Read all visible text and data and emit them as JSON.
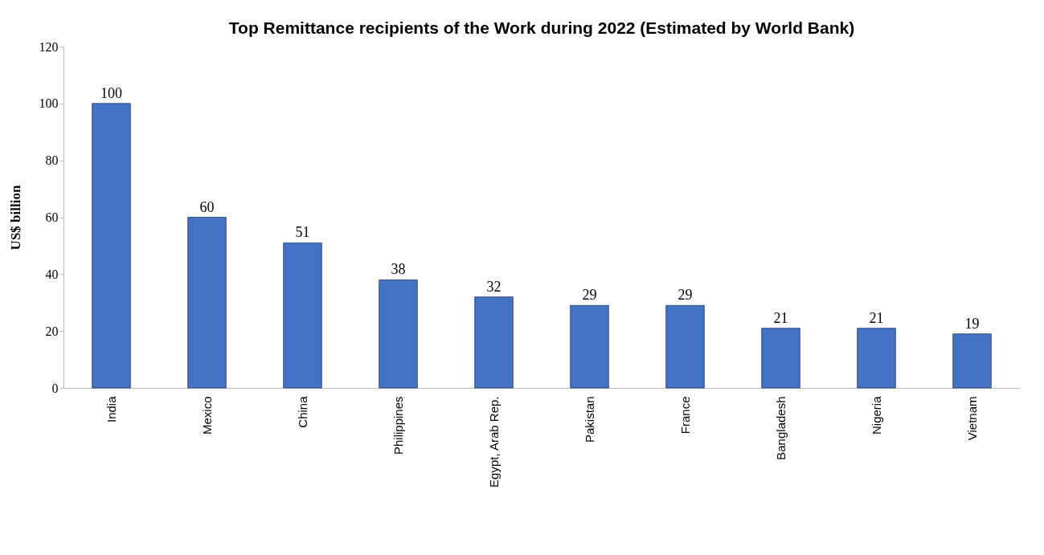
{
  "chart_data": {
    "type": "bar",
    "title": "Top Remittance recipients of the Work during 2022 (Estimated by World Bank)",
    "ylabel": "US$ billion",
    "categories": [
      "India",
      "Mexico",
      "China",
      "Philippines",
      "Egypt, Arab Rep.",
      "Pakistan",
      "France",
      "Bangladesh",
      "Nigeria",
      "Vietnam"
    ],
    "values": [
      100,
      60,
      51,
      38,
      32,
      29,
      29,
      21,
      21,
      19
    ],
    "color": "#4472c4",
    "ylim": [
      0,
      120
    ],
    "yticks": [
      0,
      20,
      40,
      60,
      80,
      100,
      120
    ],
    "grid": false,
    "data_labels": true
  }
}
